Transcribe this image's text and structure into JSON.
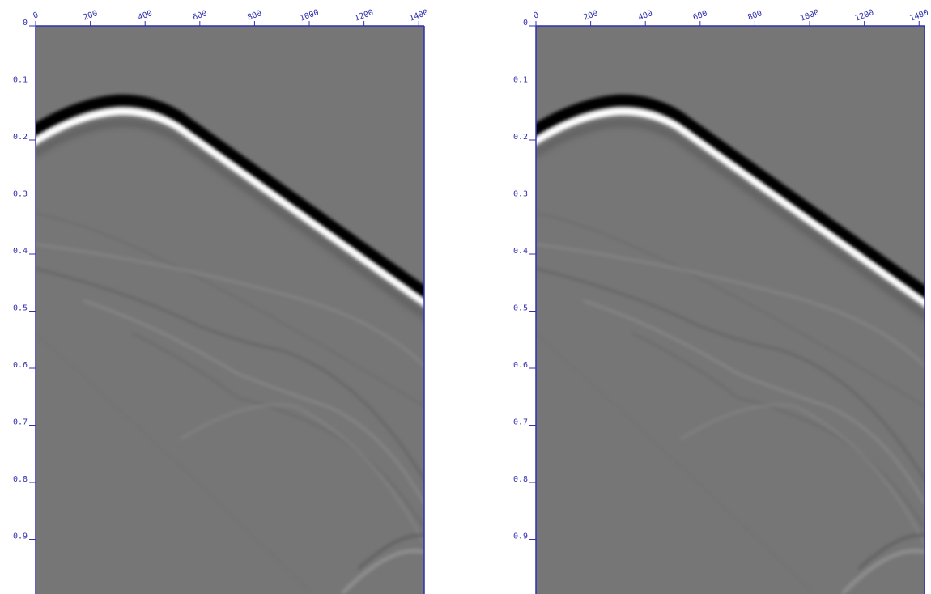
{
  "chart_data": [
    {
      "type": "image",
      "xlim": [
        0,
        1420
      ],
      "ylim": [
        0,
        1.0
      ],
      "xticks": [
        0,
        200,
        400,
        600,
        800,
        1000,
        1200,
        1400
      ],
      "yticks": [
        0,
        0.1,
        0.2,
        0.3,
        0.4,
        0.5,
        0.6,
        0.7,
        0.8,
        0.9
      ],
      "axis_color": "#3030b0"
    },
    {
      "type": "image",
      "xlim": [
        0,
        1420
      ],
      "ylim": [
        0,
        1.0
      ],
      "xticks": [
        0,
        200,
        400,
        600,
        800,
        1000,
        1200,
        1400
      ],
      "yticks": [
        0,
        0.1,
        0.2,
        0.3,
        0.4,
        0.5,
        0.6,
        0.7,
        0.8,
        0.9
      ],
      "axis_color": "#3030b0"
    }
  ]
}
